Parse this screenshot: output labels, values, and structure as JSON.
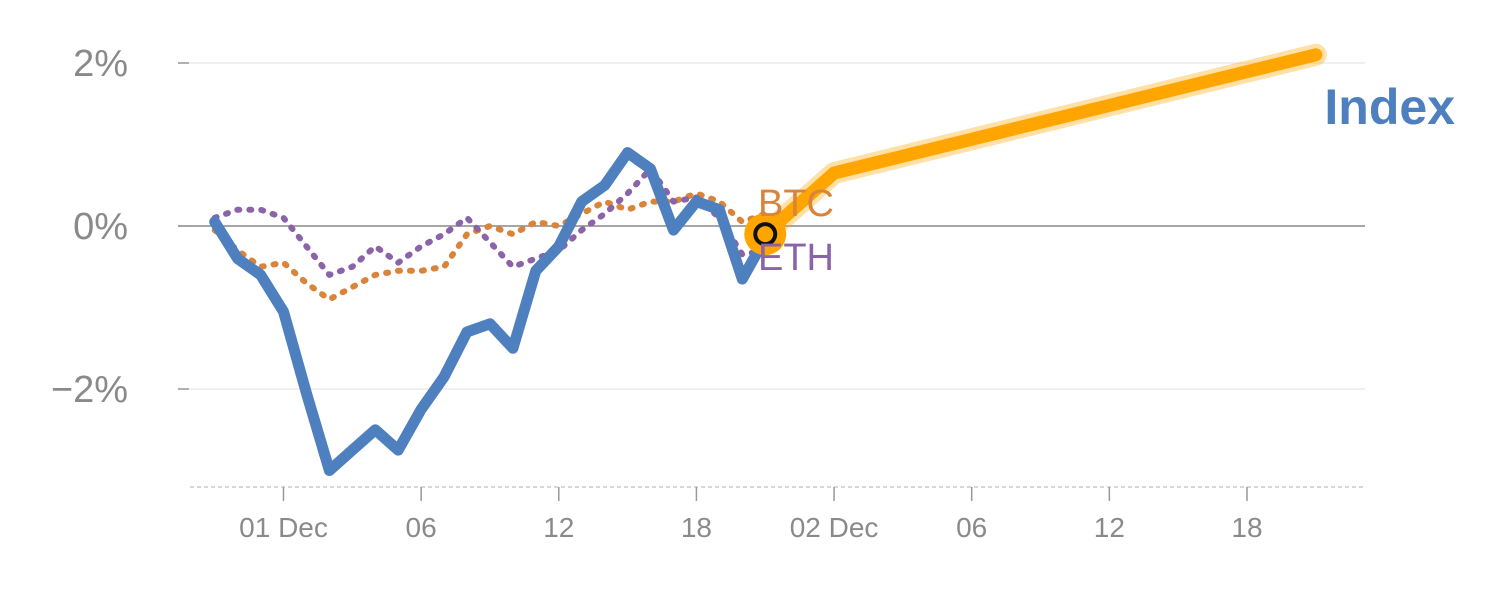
{
  "chart_data": {
    "type": "line",
    "y_unit": "%",
    "ylim": [
      -3.2,
      2.1
    ],
    "y_ticks": [
      {
        "value": 2,
        "label": "2%"
      },
      {
        "value": 0,
        "label": "0%"
      },
      {
        "value": -2,
        "label": "−2%"
      }
    ],
    "x_ticks": [
      {
        "day": 2,
        "label": "01 Dec"
      },
      {
        "day": 8,
        "label": "06"
      },
      {
        "day": 14,
        "label": "12"
      },
      {
        "day": 20,
        "label": "18"
      },
      {
        "day": 26,
        "label": "02 Dec"
      },
      {
        "day": 32,
        "label": "06"
      },
      {
        "day": 38,
        "label": "12"
      },
      {
        "day": 44,
        "label": "18"
      }
    ],
    "xlim": [
      -2,
      49.5
    ],
    "grid": true,
    "series": [
      {
        "name": "Index",
        "color": "#4e7fbf",
        "style": "solid",
        "x": [
          -1,
          0,
          1,
          2,
          3,
          4,
          5,
          6,
          7,
          8,
          9,
          10,
          11,
          12,
          13,
          14,
          15,
          16,
          17,
          18,
          19,
          20,
          21,
          22,
          23
        ],
        "values": [
          0.05,
          -0.4,
          -0.6,
          -1.05,
          -2.05,
          -3.0,
          -2.75,
          -2.5,
          -2.75,
          -2.25,
          -1.85,
          -1.3,
          -1.2,
          -1.5,
          -0.55,
          -0.25,
          0.3,
          0.5,
          0.9,
          0.7,
          -0.05,
          0.3,
          0.2,
          -0.65,
          -0.15
        ]
      },
      {
        "name": "BTC",
        "color": "#d9843a",
        "style": "dotted",
        "x": [
          -1,
          0,
          1,
          2,
          3,
          4,
          5,
          6,
          7,
          8,
          9,
          10,
          11,
          12,
          13,
          14,
          15,
          16,
          17,
          18,
          19,
          20,
          21,
          22,
          23
        ],
        "values": [
          -0.05,
          -0.3,
          -0.5,
          -0.45,
          -0.7,
          -0.9,
          -0.75,
          -0.6,
          -0.55,
          -0.55,
          -0.5,
          -0.1,
          0.0,
          -0.1,
          0.05,
          0.0,
          0.15,
          0.3,
          0.2,
          0.3,
          0.3,
          0.4,
          0.3,
          0.05,
          0.15
        ]
      },
      {
        "name": "ETH",
        "color": "#8a63a8",
        "style": "dotted",
        "x": [
          -1,
          0,
          1,
          2,
          3,
          4,
          5,
          6,
          7,
          8,
          9,
          10,
          11,
          12,
          13,
          14,
          15,
          16,
          17,
          18,
          19,
          20,
          21,
          22,
          23
        ],
        "values": [
          0.1,
          0.2,
          0.2,
          0.1,
          -0.25,
          -0.6,
          -0.5,
          -0.25,
          -0.45,
          -0.25,
          -0.1,
          0.1,
          -0.2,
          -0.5,
          -0.4,
          -0.3,
          -0.05,
          0.15,
          0.4,
          0.7,
          0.3,
          0.35,
          0.1,
          -0.35,
          -0.3
        ]
      },
      {
        "name": "Index",
        "color": "#ffa500",
        "style": "projection",
        "x": [
          23,
          24,
          26,
          47
        ],
        "values": [
          -0.1,
          0.15,
          0.65,
          2.1
        ]
      }
    ],
    "marker": {
      "x": 23,
      "value": -0.1
    },
    "labels": {
      "btc": "BTC",
      "eth": "ETH",
      "index": "Index"
    }
  }
}
